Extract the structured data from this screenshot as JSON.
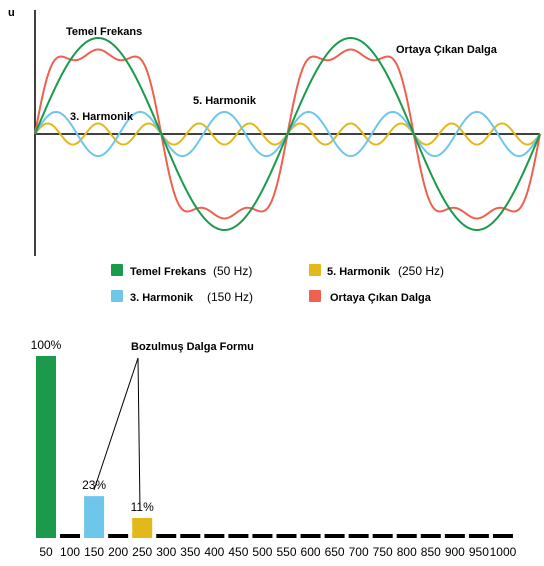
{
  "colors": {
    "fundamental": "#1a9a4a",
    "harmonic3": "#6ec6ea",
    "harmonic5": "#e3b81a",
    "result": "#ee6050",
    "axis": "#000000",
    "bar_placeholder": "#000000"
  },
  "chart_data": [
    {
      "type": "line",
      "ylabel": "u",
      "grid": false,
      "annotations": {
        "fundamental": "Temel Frekans",
        "result": "Ortaya Çıkan Dalga",
        "h3": "3. Harmonik",
        "h5": "5. Harmonik"
      },
      "x": {
        "periods": 2
      },
      "series": [
        {
          "name": "Temel Frekans",
          "frequency": 50,
          "harmonic_order": 1,
          "amplitude": 1.0,
          "color": "#1a9a4a"
        },
        {
          "name": "3. Harmonik",
          "frequency": 150,
          "harmonic_order": 3,
          "amplitude": 0.23,
          "color": "#6ec6ea"
        },
        {
          "name": "5. Harmonik",
          "frequency": 250,
          "harmonic_order": 5,
          "amplitude": 0.11,
          "color": "#e3b81a"
        },
        {
          "name": "Ortaya Çıkan Dalga",
          "composition": "sum",
          "color": "#ee6050"
        }
      ],
      "legend": {
        "placement": "bottom",
        "items": [
          {
            "label": "Temel Frekans",
            "freq": "(50 Hz)",
            "color": "#1a9a4a"
          },
          {
            "label": "5. Harmonik",
            "freq": "(250 Hz)",
            "color": "#e3b81a"
          },
          {
            "label": "3. Harmonik",
            "freq": "(150 Hz)",
            "color": "#6ec6ea"
          },
          {
            "label": "Ortaya Çıkan Dalga",
            "freq": "",
            "color": "#ee6050"
          }
        ]
      }
    },
    {
      "type": "bar",
      "title": "Bozulmuş Dalga Formu",
      "categories": [
        "50",
        "100",
        "150",
        "200",
        "250",
        "300",
        "350",
        "400",
        "450",
        "500",
        "550",
        "600",
        "650",
        "700",
        "750",
        "800",
        "850",
        "900",
        "950",
        "1000"
      ],
      "values": [
        100,
        0,
        23,
        0,
        11,
        0,
        0,
        0,
        0,
        0,
        0,
        0,
        0,
        0,
        0,
        0,
        0,
        0,
        0,
        0
      ],
      "bar_colors": [
        "#1a9a4a",
        "#000000",
        "#6ec6ea",
        "#000000",
        "#e3b81a"
      ],
      "data_labels": {
        "0": "100%",
        "2": "23%",
        "4": "11%"
      },
      "ylim": [
        0,
        100
      ]
    }
  ]
}
